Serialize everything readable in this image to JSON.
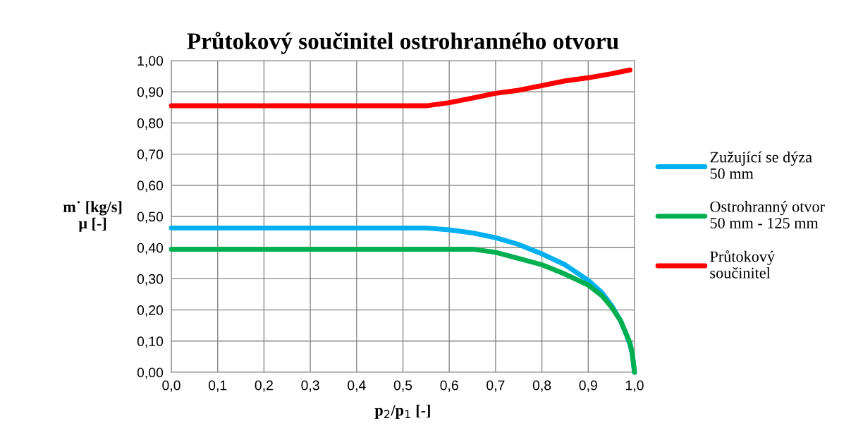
{
  "chart_data": {
    "type": "line",
    "title": "Průtokový součinitel ostrohranného otvoru",
    "xlabel": "p$_{2}$/p$_{1}$ [-]",
    "ylabel": "m˙ [kg/s]\nμ [-]",
    "xlim": [
      0,
      1
    ],
    "ylim": [
      0,
      1
    ],
    "xticks": [
      {
        "value": 0,
        "label": "0,0"
      },
      {
        "value": 0.1,
        "label": "0,1"
      },
      {
        "value": 0.2,
        "label": "0,2"
      },
      {
        "value": 0.3,
        "label": "0,3"
      },
      {
        "value": 0.4,
        "label": "0,4"
      },
      {
        "value": 0.5,
        "label": "0,5"
      },
      {
        "value": 0.6,
        "label": "0,6"
      },
      {
        "value": 0.7,
        "label": "0,7"
      },
      {
        "value": 0.8,
        "label": "0,8"
      },
      {
        "value": 0.9,
        "label": "0,9"
      },
      {
        "value": 1,
        "label": "1,0"
      }
    ],
    "yticks": [
      {
        "value": 0,
        "label": "0,00"
      },
      {
        "value": 0.1,
        "label": "0,10"
      },
      {
        "value": 0.2,
        "label": "0,20"
      },
      {
        "value": 0.3,
        "label": "0,30"
      },
      {
        "value": 0.4,
        "label": "0,40"
      },
      {
        "value": 0.5,
        "label": "0,50"
      },
      {
        "value": 0.6,
        "label": "0,60"
      },
      {
        "value": 0.7,
        "label": "0,70"
      },
      {
        "value": 0.8,
        "label": "0,80"
      },
      {
        "value": 0.9,
        "label": "0,90"
      },
      {
        "value": 1,
        "label": "1,00"
      }
    ],
    "grid": true,
    "legend": "right",
    "marker": "none",
    "line_style": "solid",
    "series": [
      {
        "name": "Zužující se dýza\n50 mm",
        "color": "#00b0f0",
        "x": [
          0,
          0.1,
          0.2,
          0.3,
          0.4,
          0.5,
          0.55,
          0.6,
          0.65,
          0.7,
          0.75,
          0.8,
          0.85,
          0.9,
          0.93,
          0.95,
          0.97,
          0.98,
          0.99,
          0.995,
          1.0
        ],
        "values": [
          0.463,
          0.463,
          0.463,
          0.463,
          0.463,
          0.463,
          0.463,
          0.457,
          0.447,
          0.432,
          0.41,
          0.38,
          0.345,
          0.295,
          0.255,
          0.215,
          0.165,
          0.13,
          0.09,
          0.06,
          0.0
        ]
      },
      {
        "name": "Ostrohranný otvor\n50 mm - 125 mm",
        "color": "#00b050",
        "x": [
          0,
          0.1,
          0.2,
          0.3,
          0.4,
          0.5,
          0.6,
          0.65,
          0.7,
          0.75,
          0.8,
          0.85,
          0.9,
          0.93,
          0.95,
          0.97,
          0.98,
          0.99,
          0.995,
          1.0
        ],
        "values": [
          0.395,
          0.395,
          0.395,
          0.395,
          0.395,
          0.395,
          0.395,
          0.395,
          0.385,
          0.365,
          0.345,
          0.315,
          0.28,
          0.245,
          0.21,
          0.165,
          0.13,
          0.095,
          0.06,
          0.0
        ]
      },
      {
        "name": "Průtokový\nsoučinitel",
        "color": "#ff0000",
        "x": [
          0,
          0.1,
          0.2,
          0.3,
          0.4,
          0.5,
          0.55,
          0.6,
          0.65,
          0.7,
          0.75,
          0.8,
          0.85,
          0.9,
          0.95,
          0.99
        ],
        "values": [
          0.855,
          0.855,
          0.855,
          0.855,
          0.855,
          0.855,
          0.855,
          0.865,
          0.88,
          0.895,
          0.905,
          0.92,
          0.935,
          0.945,
          0.958,
          0.97
        ]
      }
    ]
  }
}
